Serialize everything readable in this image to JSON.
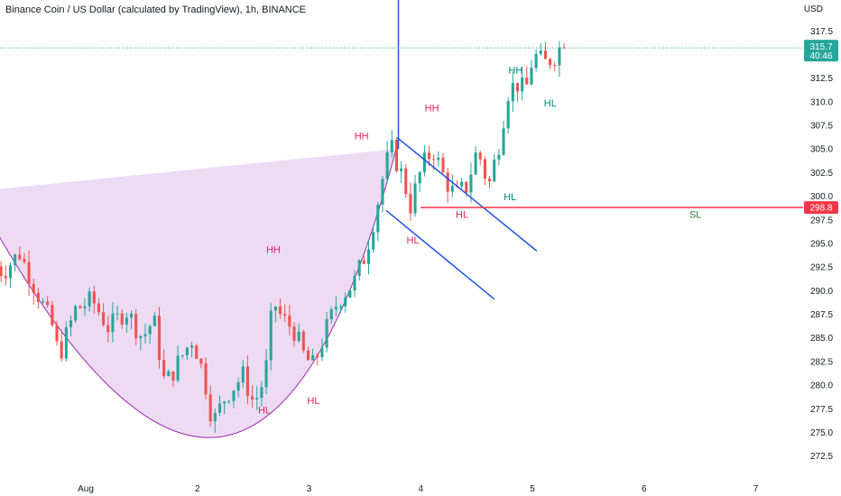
{
  "header": {
    "title": "Binance Coin / US Dollar (calculated by TradingView), 1h, BINANCE",
    "currency": "USD"
  },
  "price_tags": {
    "last_price": "315.7",
    "countdown": "40:46",
    "sl_level": "298.8"
  },
  "colors": {
    "up": "#26a69a",
    "down": "#ef5350",
    "trendline": "#1e53e5",
    "sl_line": "#f23645",
    "shape_fill": "#e9d5f1",
    "shape_stroke": "#9c27b0",
    "label_pink": "#e91e63",
    "label_green": "#2e7d32",
    "label_teal": "#00897b"
  },
  "chart_data": {
    "type": "candlestick",
    "symbol": "BNBUSD",
    "interval": "1h",
    "ylim": [
      271,
      321.5
    ],
    "y_ticks": [
      "272.5",
      "275.0",
      "277.5",
      "280.0",
      "282.5",
      "285.0",
      "287.5",
      "290.0",
      "292.5",
      "295.0",
      "297.5",
      "300.0",
      "302.5",
      "305.0",
      "307.5",
      "310.0",
      "312.5",
      "317.5"
    ],
    "x_ticks": [
      "Aug",
      "2",
      "3",
      "4",
      "5",
      "6",
      "7"
    ],
    "x_tick_days": [
      1,
      2,
      3,
      4,
      5,
      6,
      7
    ],
    "candle_bars_per_day": 24,
    "candles_start_day": 0.2,
    "anchors": [
      [
        0.2,
        293
      ],
      [
        0.3,
        292
      ],
      [
        0.45,
        294
      ],
      [
        0.6,
        290
      ],
      [
        0.75,
        286
      ],
      [
        0.8,
        283
      ],
      [
        0.95,
        288
      ],
      [
        1.1,
        289
      ],
      [
        1.25,
        286
      ],
      [
        1.4,
        288
      ],
      [
        1.55,
        285
      ],
      [
        1.65,
        287
      ],
      [
        1.75,
        280
      ],
      [
        1.9,
        283
      ],
      [
        2.0,
        285
      ],
      [
        2.1,
        281
      ],
      [
        2.18,
        276
      ],
      [
        2.3,
        279
      ],
      [
        2.45,
        281
      ],
      [
        2.55,
        278
      ],
      [
        2.65,
        281
      ],
      [
        2.72,
        289
      ],
      [
        2.8,
        287
      ],
      [
        2.9,
        286
      ],
      [
        3.0,
        283
      ],
      [
        3.08,
        282
      ],
      [
        3.2,
        286
      ],
      [
        3.3,
        289
      ],
      [
        3.45,
        291
      ],
      [
        3.55,
        294
      ],
      [
        3.65,
        299
      ],
      [
        3.72,
        303
      ],
      [
        3.78,
        305
      ],
      [
        3.88,
        302
      ],
      [
        3.95,
        299
      ],
      [
        4.05,
        303
      ],
      [
        4.15,
        305
      ],
      [
        4.25,
        302
      ],
      [
        4.35,
        300
      ],
      [
        4.45,
        301
      ],
      [
        4.55,
        305
      ],
      [
        4.65,
        301
      ],
      [
        4.75,
        306
      ],
      [
        4.82,
        311
      ],
      [
        4.9,
        312
      ],
      [
        4.98,
        311
      ],
      [
        5.05,
        315
      ],
      [
        5.15,
        314
      ],
      [
        5.25,
        315
      ],
      [
        5.3,
        316
      ]
    ],
    "last_price": 315.7,
    "annotations": {
      "cup_rim": [
        [
          0,
          300.5
        ],
        [
          3.78,
          305
        ]
      ],
      "cup_bottom": [
        2.18,
        274.5
      ],
      "trendline_upper": [
        [
          3.79,
          306.2
        ],
        [
          5.04,
          294.2
        ]
      ],
      "trendline_lower": [
        [
          3.69,
          298.5
        ],
        [
          4.66,
          289.1
        ]
      ],
      "vertical_line_day": 3.8,
      "stop_loss": 298.8,
      "labels": [
        {
          "text": "HH",
          "day": 3.47,
          "price": 306,
          "color": "pink"
        },
        {
          "text": "HH",
          "day": 4.1,
          "price": 309,
          "color": "pink"
        },
        {
          "text": "HH",
          "day": 2.68,
          "price": 294,
          "color": "pink"
        },
        {
          "text": "HL",
          "day": 2.6,
          "price": 277,
          "color": "pink"
        },
        {
          "text": "HL",
          "day": 3.04,
          "price": 278,
          "color": "pink"
        },
        {
          "text": "HL",
          "day": 3.93,
          "price": 295,
          "color": "pink"
        },
        {
          "text": "HL",
          "day": 4.37,
          "price": 297.7,
          "color": "pink"
        },
        {
          "text": "HH",
          "day": 4.85,
          "price": 313,
          "color": "teal"
        },
        {
          "text": "HL",
          "day": 4.8,
          "price": 299.6,
          "color": "teal"
        },
        {
          "text": "HL",
          "day": 5.16,
          "price": 309.5,
          "color": "teal"
        },
        {
          "text": "SL",
          "day": 6.46,
          "price": 297.7,
          "color": "green"
        }
      ]
    }
  }
}
